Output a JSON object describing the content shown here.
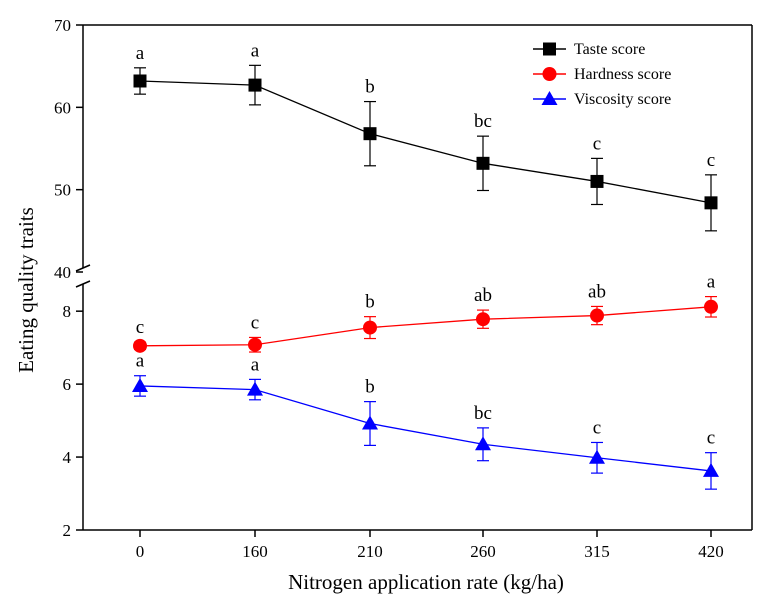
{
  "chart_data": {
    "type": "line",
    "title": "",
    "xlabel": "Nitrogen application rate (kg/ha)",
    "ylabel": "Eating quality traits",
    "categories": [
      "0",
      "160",
      "210",
      "260",
      "315",
      "420"
    ],
    "y_axis_break": true,
    "y_upper_segment": {
      "ylim": [
        40,
        70
      ],
      "ticks": [
        "40",
        "50",
        "60",
        "70"
      ]
    },
    "y_lower_segment": {
      "ylim": [
        2,
        8.8
      ],
      "ticks": [
        "2",
        "4",
        "6",
        "8"
      ]
    },
    "legend_position": "top-right",
    "grid": false,
    "series": [
      {
        "name": "Taste score",
        "segment": "upper",
        "marker": "square",
        "color": "#000000",
        "values": [
          63.2,
          62.7,
          56.8,
          53.2,
          51.0,
          48.4
        ],
        "errors": [
          1.6,
          2.4,
          3.9,
          3.3,
          2.8,
          3.4
        ],
        "letters": [
          "a",
          "a",
          "b",
          "bc",
          "c",
          "c"
        ]
      },
      {
        "name": "Hardness score",
        "segment": "lower",
        "marker": "circle",
        "color": "#ff0000",
        "values": [
          7.05,
          7.08,
          7.55,
          7.78,
          7.88,
          8.12
        ],
        "errors": [
          0.1,
          0.2,
          0.3,
          0.25,
          0.25,
          0.28
        ],
        "letters": [
          "c",
          "c",
          "b",
          "ab",
          "ab",
          "a"
        ]
      },
      {
        "name": "Viscosity score",
        "segment": "lower",
        "marker": "triangle",
        "color": "#0000ff",
        "values": [
          5.95,
          5.85,
          4.92,
          4.35,
          3.98,
          3.62
        ],
        "errors": [
          0.28,
          0.28,
          0.6,
          0.45,
          0.42,
          0.5
        ],
        "letters": [
          "a",
          "a",
          "b",
          "bc",
          "c",
          "c"
        ]
      }
    ]
  }
}
